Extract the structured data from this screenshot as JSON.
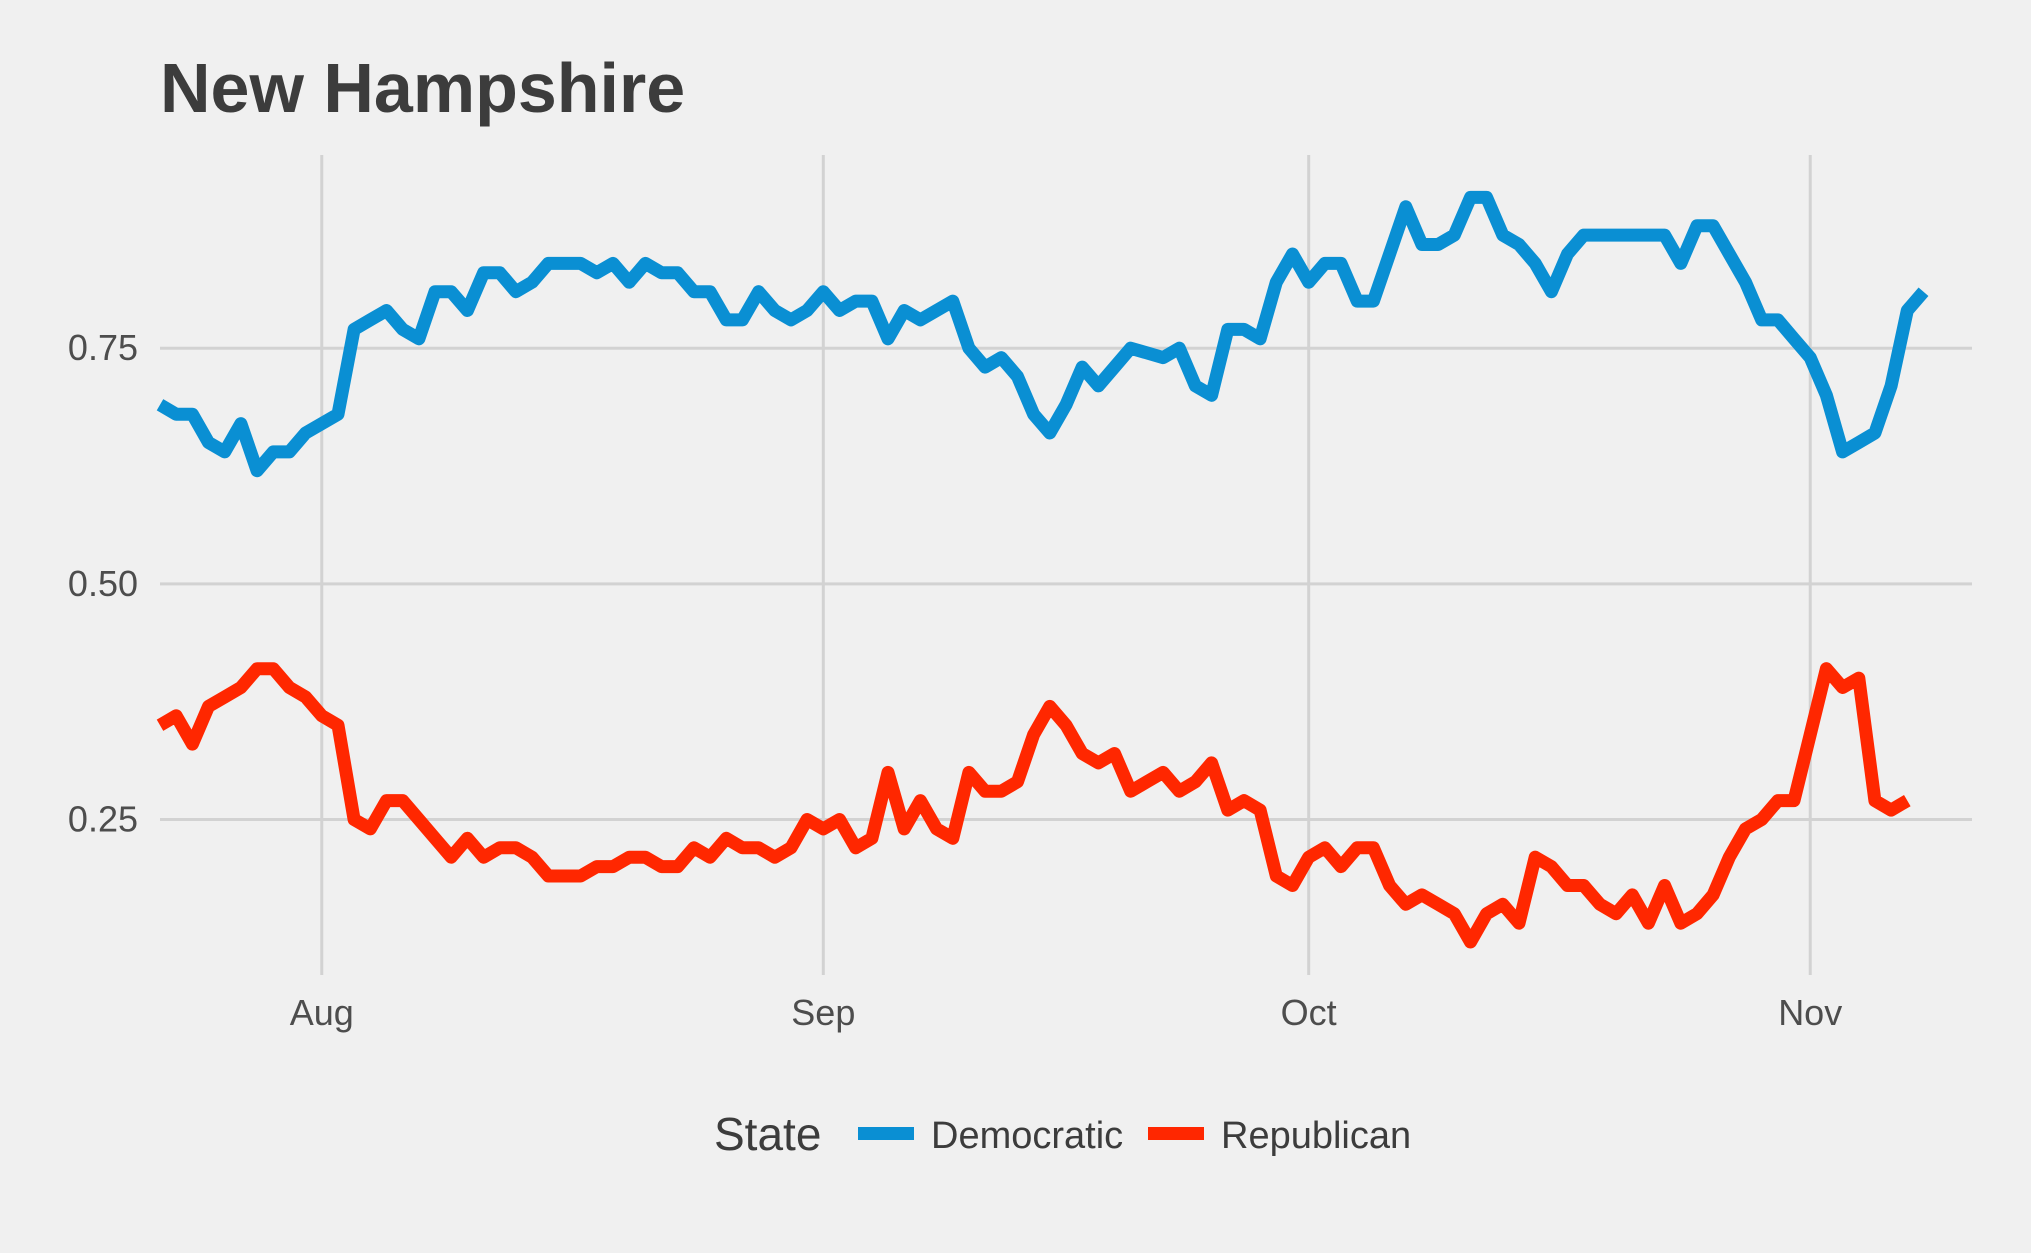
{
  "chart_data": {
    "type": "line",
    "title": "New Hampshire",
    "xlabel": "",
    "ylabel": "",
    "x_axis": "date",
    "xlim": [
      "2024-07-22",
      "2024-11-11"
    ],
    "ylim": [
      0.085,
      0.955
    ],
    "y_ticks": [
      0.25,
      0.5,
      0.75
    ],
    "y_tick_labels": [
      "0.25",
      "0.50",
      "0.75"
    ],
    "x_ticks": [
      "2024-08-01",
      "2024-09-01",
      "2024-10-01",
      "2024-11-01"
    ],
    "x_tick_labels": [
      "Aug",
      "Sep",
      "Oct",
      "Nov"
    ],
    "grid": true,
    "legend": {
      "title": "State",
      "placement": "bottom"
    },
    "series": [
      {
        "name": "Democratic",
        "color": "#0a8fd3",
        "points": [
          [
            "2024-07-22",
            0.69
          ],
          [
            "2024-07-23",
            0.68
          ],
          [
            "2024-07-24",
            0.68
          ],
          [
            "2024-07-25",
            0.65
          ],
          [
            "2024-07-26",
            0.64
          ],
          [
            "2024-07-27",
            0.67
          ],
          [
            "2024-07-28",
            0.62
          ],
          [
            "2024-07-29",
            0.64
          ],
          [
            "2024-07-30",
            0.64
          ],
          [
            "2024-07-31",
            0.66
          ],
          [
            "2024-08-01",
            0.67
          ],
          [
            "2024-08-02",
            0.68
          ],
          [
            "2024-08-03",
            0.77
          ],
          [
            "2024-08-04",
            0.78
          ],
          [
            "2024-08-05",
            0.79
          ],
          [
            "2024-08-06",
            0.77
          ],
          [
            "2024-08-07",
            0.76
          ],
          [
            "2024-08-08",
            0.81
          ],
          [
            "2024-08-09",
            0.81
          ],
          [
            "2024-08-10",
            0.79
          ],
          [
            "2024-08-11",
            0.83
          ],
          [
            "2024-08-12",
            0.83
          ],
          [
            "2024-08-13",
            0.81
          ],
          [
            "2024-08-14",
            0.82
          ],
          [
            "2024-08-15",
            0.84
          ],
          [
            "2024-08-16",
            0.84
          ],
          [
            "2024-08-17",
            0.84
          ],
          [
            "2024-08-18",
            0.83
          ],
          [
            "2024-08-19",
            0.84
          ],
          [
            "2024-08-20",
            0.82
          ],
          [
            "2024-08-21",
            0.84
          ],
          [
            "2024-08-22",
            0.83
          ],
          [
            "2024-08-23",
            0.83
          ],
          [
            "2024-08-24",
            0.81
          ],
          [
            "2024-08-25",
            0.81
          ],
          [
            "2024-08-26",
            0.78
          ],
          [
            "2024-08-27",
            0.78
          ],
          [
            "2024-08-28",
            0.81
          ],
          [
            "2024-08-29",
            0.79
          ],
          [
            "2024-08-30",
            0.78
          ],
          [
            "2024-08-31",
            0.79
          ],
          [
            "2024-09-01",
            0.81
          ],
          [
            "2024-09-02",
            0.79
          ],
          [
            "2024-09-03",
            0.8
          ],
          [
            "2024-09-04",
            0.8
          ],
          [
            "2024-09-05",
            0.76
          ],
          [
            "2024-09-06",
            0.79
          ],
          [
            "2024-09-07",
            0.78
          ],
          [
            "2024-09-08",
            0.79
          ],
          [
            "2024-09-09",
            0.8
          ],
          [
            "2024-09-10",
            0.75
          ],
          [
            "2024-09-11",
            0.73
          ],
          [
            "2024-09-12",
            0.74
          ],
          [
            "2024-09-13",
            0.72
          ],
          [
            "2024-09-14",
            0.68
          ],
          [
            "2024-09-15",
            0.66
          ],
          [
            "2024-09-16",
            0.69
          ],
          [
            "2024-09-17",
            0.73
          ],
          [
            "2024-09-18",
            0.71
          ],
          [
            "2024-09-19",
            0.73
          ],
          [
            "2024-09-20",
            0.75
          ],
          [
            "2024-09-21",
            0.745
          ],
          [
            "2024-09-22",
            0.74
          ],
          [
            "2024-09-23",
            0.75
          ],
          [
            "2024-09-24",
            0.71
          ],
          [
            "2024-09-25",
            0.7
          ],
          [
            "2024-09-26",
            0.77
          ],
          [
            "2024-09-27",
            0.77
          ],
          [
            "2024-09-28",
            0.76
          ],
          [
            "2024-09-29",
            0.82
          ],
          [
            "2024-09-30",
            0.85
          ],
          [
            "2024-10-01",
            0.82
          ],
          [
            "2024-10-02",
            0.84
          ],
          [
            "2024-10-03",
            0.84
          ],
          [
            "2024-10-04",
            0.8
          ],
          [
            "2024-10-05",
            0.8
          ],
          [
            "2024-10-06",
            0.85
          ],
          [
            "2024-10-07",
            0.9
          ],
          [
            "2024-10-08",
            0.86
          ],
          [
            "2024-10-09",
            0.86
          ],
          [
            "2024-10-10",
            0.87
          ],
          [
            "2024-10-11",
            0.91
          ],
          [
            "2024-10-12",
            0.91
          ],
          [
            "2024-10-13",
            0.87
          ],
          [
            "2024-10-14",
            0.86
          ],
          [
            "2024-10-15",
            0.84
          ],
          [
            "2024-10-16",
            0.81
          ],
          [
            "2024-10-17",
            0.85
          ],
          [
            "2024-10-18",
            0.87
          ],
          [
            "2024-10-19",
            0.87
          ],
          [
            "2024-10-20",
            0.87
          ],
          [
            "2024-10-21",
            0.87
          ],
          [
            "2024-10-22",
            0.87
          ],
          [
            "2024-10-23",
            0.87
          ],
          [
            "2024-10-24",
            0.84
          ],
          [
            "2024-10-25",
            0.88
          ],
          [
            "2024-10-26",
            0.88
          ],
          [
            "2024-10-27",
            0.85
          ],
          [
            "2024-10-28",
            0.82
          ],
          [
            "2024-10-29",
            0.78
          ],
          [
            "2024-10-30",
            0.78
          ],
          [
            "2024-10-31",
            0.76
          ],
          [
            "2024-11-01",
            0.74
          ],
          [
            "2024-11-02",
            0.7
          ],
          [
            "2024-11-03",
            0.64
          ],
          [
            "2024-11-04",
            0.65
          ],
          [
            "2024-11-05",
            0.66
          ],
          [
            "2024-11-06",
            0.71
          ],
          [
            "2024-11-07",
            0.79
          ],
          [
            "2024-11-08",
            0.81
          ]
        ]
      },
      {
        "name": "Republican",
        "color": "#ff2700",
        "points": [
          [
            "2024-07-22",
            0.35
          ],
          [
            "2024-07-23",
            0.36
          ],
          [
            "2024-07-24",
            0.33
          ],
          [
            "2024-07-25",
            0.37
          ],
          [
            "2024-07-26",
            0.38
          ],
          [
            "2024-07-27",
            0.39
          ],
          [
            "2024-07-28",
            0.41
          ],
          [
            "2024-07-29",
            0.41
          ],
          [
            "2024-07-30",
            0.39
          ],
          [
            "2024-07-31",
            0.38
          ],
          [
            "2024-08-01",
            0.36
          ],
          [
            "2024-08-02",
            0.35
          ],
          [
            "2024-08-03",
            0.25
          ],
          [
            "2024-08-04",
            0.24
          ],
          [
            "2024-08-05",
            0.27
          ],
          [
            "2024-08-06",
            0.27
          ],
          [
            "2024-08-07",
            0.25
          ],
          [
            "2024-08-08",
            0.23
          ],
          [
            "2024-08-09",
            0.21
          ],
          [
            "2024-08-10",
            0.23
          ],
          [
            "2024-08-11",
            0.21
          ],
          [
            "2024-08-12",
            0.22
          ],
          [
            "2024-08-13",
            0.22
          ],
          [
            "2024-08-14",
            0.21
          ],
          [
            "2024-08-15",
            0.19
          ],
          [
            "2024-08-16",
            0.19
          ],
          [
            "2024-08-17",
            0.19
          ],
          [
            "2024-08-18",
            0.2
          ],
          [
            "2024-08-19",
            0.2
          ],
          [
            "2024-08-20",
            0.21
          ],
          [
            "2024-08-21",
            0.21
          ],
          [
            "2024-08-22",
            0.2
          ],
          [
            "2024-08-23",
            0.2
          ],
          [
            "2024-08-24",
            0.22
          ],
          [
            "2024-08-25",
            0.21
          ],
          [
            "2024-08-26",
            0.23
          ],
          [
            "2024-08-27",
            0.22
          ],
          [
            "2024-08-28",
            0.22
          ],
          [
            "2024-08-29",
            0.21
          ],
          [
            "2024-08-30",
            0.22
          ],
          [
            "2024-08-31",
            0.25
          ],
          [
            "2024-09-01",
            0.24
          ],
          [
            "2024-09-02",
            0.25
          ],
          [
            "2024-09-03",
            0.22
          ],
          [
            "2024-09-04",
            0.23
          ],
          [
            "2024-09-05",
            0.3
          ],
          [
            "2024-09-06",
            0.24
          ],
          [
            "2024-09-07",
            0.27
          ],
          [
            "2024-09-08",
            0.24
          ],
          [
            "2024-09-09",
            0.23
          ],
          [
            "2024-09-10",
            0.3
          ],
          [
            "2024-09-11",
            0.28
          ],
          [
            "2024-09-12",
            0.28
          ],
          [
            "2024-09-13",
            0.29
          ],
          [
            "2024-09-14",
            0.34
          ],
          [
            "2024-09-15",
            0.37
          ],
          [
            "2024-09-16",
            0.35
          ],
          [
            "2024-09-17",
            0.32
          ],
          [
            "2024-09-18",
            0.31
          ],
          [
            "2024-09-19",
            0.32
          ],
          [
            "2024-09-20",
            0.28
          ],
          [
            "2024-09-21",
            0.29
          ],
          [
            "2024-09-22",
            0.3
          ],
          [
            "2024-09-23",
            0.28
          ],
          [
            "2024-09-24",
            0.29
          ],
          [
            "2024-09-25",
            0.31
          ],
          [
            "2024-09-26",
            0.26
          ],
          [
            "2024-09-27",
            0.27
          ],
          [
            "2024-09-28",
            0.26
          ],
          [
            "2024-09-29",
            0.19
          ],
          [
            "2024-09-30",
            0.18
          ],
          [
            "2024-10-01",
            0.21
          ],
          [
            "2024-10-02",
            0.22
          ],
          [
            "2024-10-03",
            0.2
          ],
          [
            "2024-10-04",
            0.22
          ],
          [
            "2024-10-05",
            0.22
          ],
          [
            "2024-10-06",
            0.18
          ],
          [
            "2024-10-07",
            0.16
          ],
          [
            "2024-10-08",
            0.17
          ],
          [
            "2024-10-09",
            0.16
          ],
          [
            "2024-10-10",
            0.15
          ],
          [
            "2024-10-11",
            0.12
          ],
          [
            "2024-10-12",
            0.15
          ],
          [
            "2024-10-13",
            0.16
          ],
          [
            "2024-10-14",
            0.14
          ],
          [
            "2024-10-15",
            0.21
          ],
          [
            "2024-10-16",
            0.2
          ],
          [
            "2024-10-17",
            0.18
          ],
          [
            "2024-10-18",
            0.18
          ],
          [
            "2024-10-19",
            0.16
          ],
          [
            "2024-10-20",
            0.15
          ],
          [
            "2024-10-21",
            0.17
          ],
          [
            "2024-10-22",
            0.14
          ],
          [
            "2024-10-23",
            0.18
          ],
          [
            "2024-10-24",
            0.14
          ],
          [
            "2024-10-25",
            0.15
          ],
          [
            "2024-10-26",
            0.17
          ],
          [
            "2024-10-27",
            0.21
          ],
          [
            "2024-10-28",
            0.24
          ],
          [
            "2024-10-29",
            0.25
          ],
          [
            "2024-10-30",
            0.27
          ],
          [
            "2024-10-31",
            0.27
          ],
          [
            "2024-11-01",
            0.34
          ],
          [
            "2024-11-02",
            0.41
          ],
          [
            "2024-11-03",
            0.39
          ],
          [
            "2024-11-04",
            0.4
          ],
          [
            "2024-11-05",
            0.27
          ],
          [
            "2024-11-06",
            0.26
          ],
          [
            "2024-11-07",
            0.27
          ]
        ]
      }
    ]
  }
}
